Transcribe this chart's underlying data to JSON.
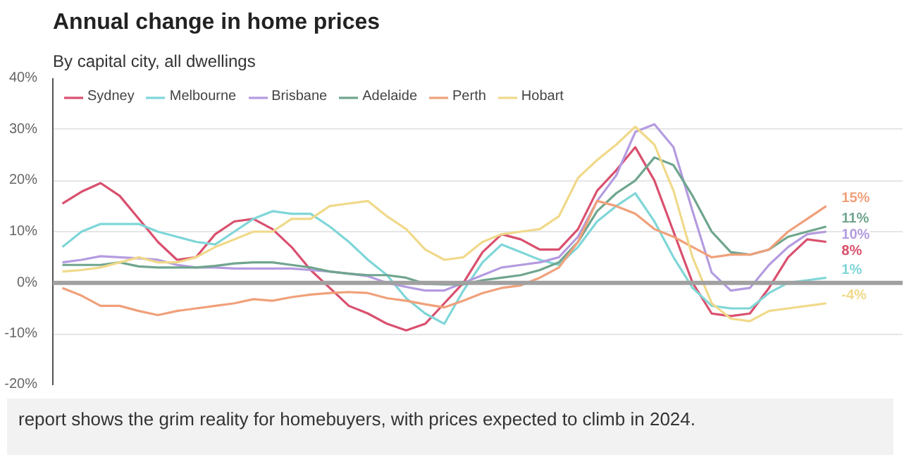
{
  "chart_data": {
    "type": "line",
    "title": "Annual change in home prices",
    "subtitle": "By capital city, all dwellings",
    "categories": [
      null,
      null,
      null,
      null,
      null,
      null,
      null,
      null,
      null,
      null,
      null,
      null,
      null,
      null,
      null,
      null,
      null,
      null,
      null,
      null,
      null,
      null,
      null,
      null,
      null,
      null,
      null,
      null,
      null,
      null,
      null,
      null,
      null,
      null,
      null,
      null,
      null,
      null,
      null,
      null,
      null
    ],
    "series": [
      {
        "name": "Sydney",
        "color": "#d9506e",
        "values": [
          15.5,
          17.8,
          19.5,
          17,
          12.5,
          8,
          4.5,
          5,
          9.5,
          12,
          12.5,
          10.5,
          7,
          2.5,
          -1,
          -4.5,
          -6,
          -8,
          -9.3,
          -8,
          -4,
          0,
          6,
          9.5,
          8.5,
          6.5,
          6.5,
          10.5,
          18,
          22,
          26.5,
          20,
          10,
          0,
          -6,
          -6.5,
          -6,
          -1,
          5,
          8.5,
          8
        ]
      },
      {
        "name": "Melbourne",
        "color": "#7fd6d8",
        "values": [
          7,
          10,
          11.5,
          11.5,
          11.5,
          10,
          9,
          8,
          7.5,
          10,
          12.5,
          14,
          13.5,
          13.5,
          11,
          8,
          4.5,
          1.5,
          -3,
          -6,
          -8,
          -1.5,
          4,
          7.5,
          6,
          4.5,
          3.5,
          7,
          12,
          15,
          17.5,
          12,
          5,
          -1,
          -4.5,
          -5,
          -5,
          -2,
          0,
          0.5,
          1
        ]
      },
      {
        "name": "Brisbane",
        "color": "#b49be0",
        "values": [
          4,
          4.5,
          5.2,
          5,
          4.8,
          4.5,
          3.5,
          3,
          3,
          2.8,
          2.8,
          2.8,
          2.8,
          2.5,
          2.2,
          1.8,
          1.3,
          0,
          -0.8,
          -1.5,
          -1.5,
          0,
          1.5,
          3,
          3.5,
          4,
          5,
          9,
          16,
          21,
          29.5,
          31,
          26.5,
          14,
          2,
          -1.5,
          -1,
          3.5,
          7,
          9.5,
          10
        ]
      },
      {
        "name": "Adelaide",
        "color": "#6fa58e",
        "values": [
          3.5,
          3.5,
          3.5,
          4,
          3.2,
          3,
          3,
          3,
          3.3,
          3.8,
          4,
          4,
          3.5,
          3,
          2.2,
          1.8,
          1.5,
          1.5,
          1,
          -0.2,
          -0.3,
          -0.3,
          0.5,
          1,
          1.5,
          2.5,
          4,
          8,
          14,
          17.5,
          20,
          24.5,
          23,
          17,
          10,
          6,
          5.5,
          6.5,
          9,
          10,
          11
        ]
      },
      {
        "name": "Perth",
        "color": "#f0a07a",
        "values": [
          -1,
          -2.5,
          -4.5,
          -4.5,
          -5.5,
          -6.3,
          -5.5,
          -5,
          -4.5,
          -4,
          -3.2,
          -3.5,
          -2.8,
          -2.3,
          -2,
          -1.8,
          -2,
          -3,
          -3.5,
          -4.2,
          -4.8,
          -3.5,
          -2,
          -1,
          -0.5,
          1,
          3,
          8,
          16,
          15,
          13.5,
          10.5,
          9,
          7,
          5,
          5.5,
          5.5,
          6.5,
          10,
          12.5,
          15
        ]
      },
      {
        "name": "Hobart",
        "color": "#f0d98a",
        "values": [
          2.2,
          2.5,
          3,
          4,
          5,
          4,
          4,
          5,
          7,
          8.5,
          10,
          10,
          12.5,
          12.5,
          15,
          15.5,
          16,
          13,
          10.5,
          6.5,
          4.5,
          5,
          8,
          9.5,
          10,
          10.5,
          13,
          20.5,
          24,
          27,
          30.5,
          27,
          18,
          5,
          -4,
          -7,
          -7.5,
          -5.5,
          -5,
          -4.5,
          -4
        ]
      }
    ],
    "ylim": [
      -20,
      40
    ],
    "yticks": [
      {
        "value": -20,
        "label": "-20%"
      },
      {
        "value": -10,
        "label": "-10%"
      },
      {
        "value": 0,
        "label": "0%"
      },
      {
        "value": 10,
        "label": "10%"
      },
      {
        "value": 20,
        "label": "20%"
      },
      {
        "value": 30,
        "label": "30%"
      },
      {
        "value": 40,
        "label": "40%"
      }
    ],
    "grid": "y",
    "legend": "top",
    "ref_lines": [
      {
        "axis": "y",
        "value": 0,
        "color": "#a0a0a0"
      }
    ],
    "annotations": [
      "15%",
      "11%",
      "10%",
      "8%",
      "1%",
      "-4%",
      "report shows the grim reality for homebuyers, with prices expected to climb in 2024."
    ]
  }
}
